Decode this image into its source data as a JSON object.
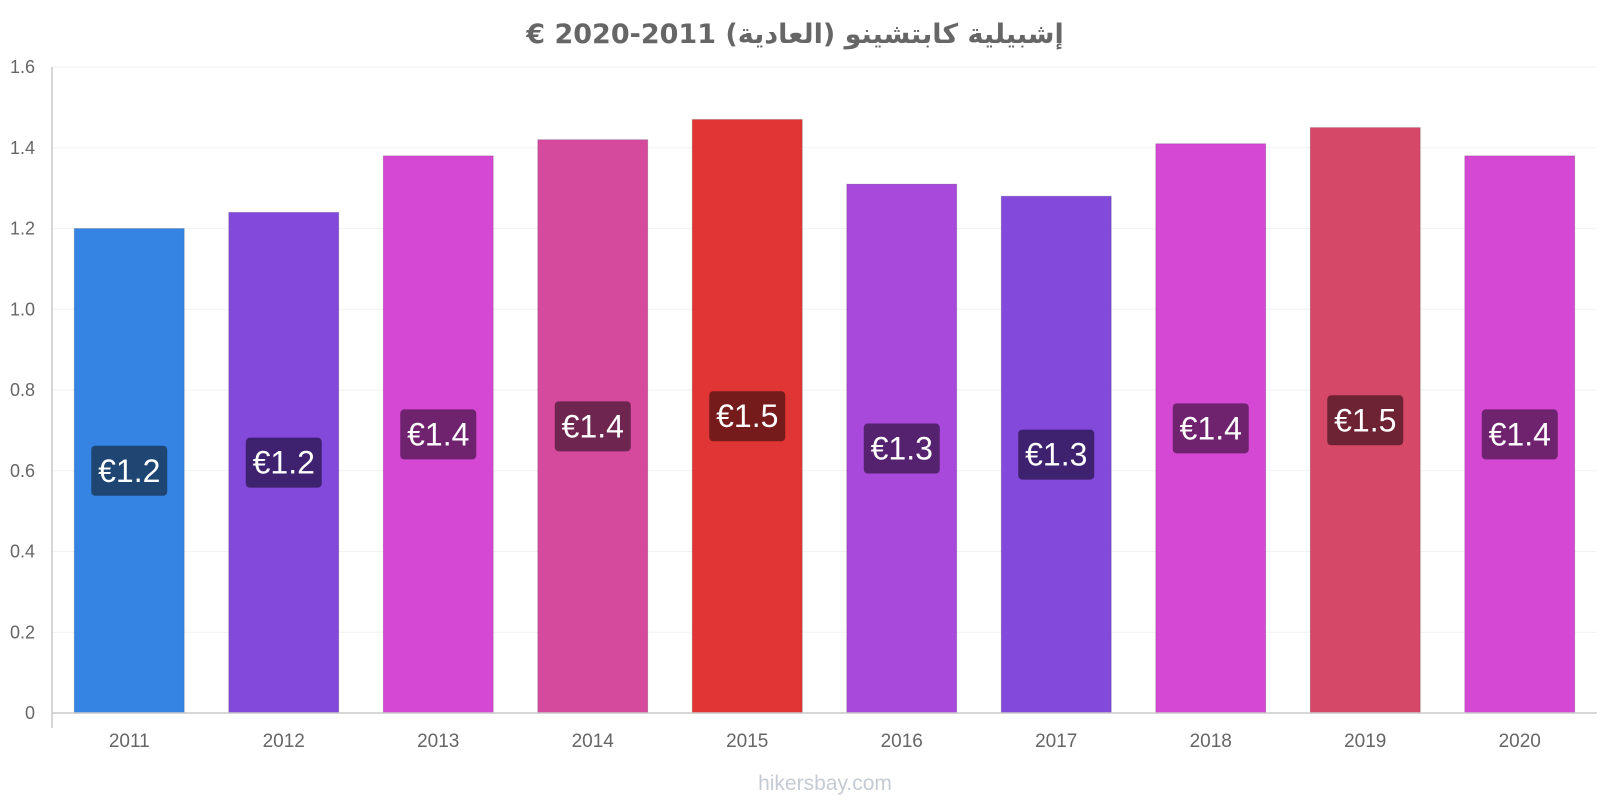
{
  "chart_data": {
    "type": "bar",
    "title": "إشبيلية كابتشينو (العادية) 2011-2020 €",
    "xlabel": "",
    "ylabel": "",
    "categories": [
      "2011",
      "2012",
      "2013",
      "2014",
      "2015",
      "2016",
      "2017",
      "2018",
      "2019",
      "2020"
    ],
    "values": [
      1.2,
      1.24,
      1.38,
      1.42,
      1.47,
      1.31,
      1.28,
      1.41,
      1.45,
      1.38
    ],
    "data_labels": [
      "€1.2",
      "€1.2",
      "€1.4",
      "€1.4",
      "€1.5",
      "€1.3",
      "€1.3",
      "€1.4",
      "€1.5",
      "€1.4"
    ],
    "bar_colors": [
      "#3584e4",
      "#8249db",
      "#d448d4",
      "#d64a9e",
      "#e03535",
      "#a849db",
      "#8249db",
      "#d448d4",
      "#d64868",
      "#d448d4"
    ],
    "label_colors": [
      "#1f4673",
      "#3f226f",
      "#6f236f",
      "#6e2550",
      "#761b1b",
      "#55226f",
      "#3f226f",
      "#6f236f",
      "#6e2335",
      "#6f236f"
    ],
    "ylim": [
      0,
      1.6
    ],
    "yticks": [
      "0",
      "0.2",
      "0.4",
      "0.6",
      "0.8",
      "1.0",
      "1.2",
      "1.4",
      "1.6"
    ],
    "grid": true,
    "legend": "none"
  },
  "watermark": "hikersbay.com"
}
